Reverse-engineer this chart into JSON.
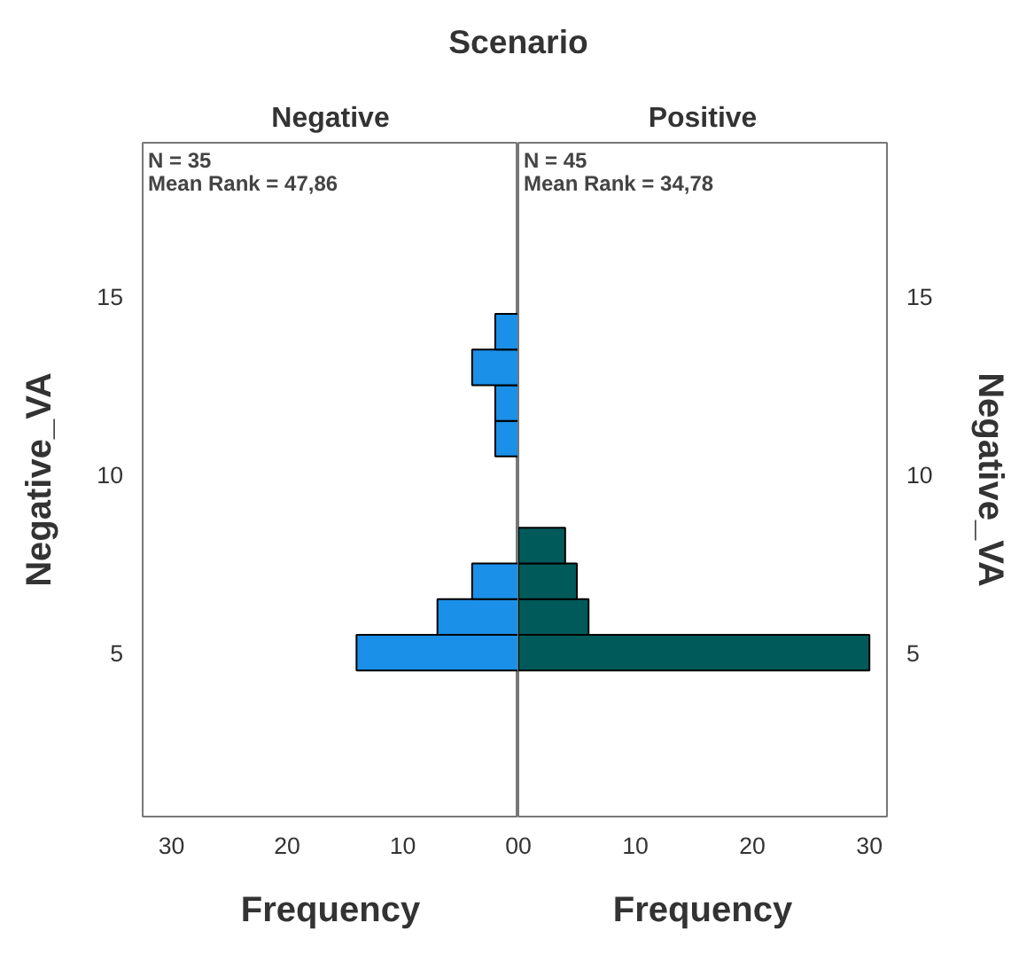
{
  "chart_data": [
    {
      "type": "histogram",
      "orientation": "horizontal",
      "title": "Negative",
      "xlabel": "Frequency",
      "ylabel": "Negative_VA",
      "annotations": [
        "Scenario",
        "N = 35",
        "Mean Rank = 47,86"
      ],
      "bins": [
        4.5,
        5.5,
        6.5,
        7.5,
        8.5,
        9.5,
        10.5,
        11.5,
        12.5,
        13.5,
        14.5
      ],
      "values": [
        14,
        7,
        4,
        0,
        0,
        0,
        2,
        2,
        4,
        2
      ],
      "color": "#1a90e8",
      "xlim": [
        32.5,
        0
      ],
      "xticks": [
        30,
        20,
        10,
        0
      ],
      "ylim": [
        0.4,
        19.3
      ],
      "yticks": [
        5,
        10,
        15
      ],
      "grid": false
    },
    {
      "type": "histogram",
      "orientation": "horizontal",
      "title": "Positive",
      "xlabel": "Frequency",
      "ylabel": "Negative_VA",
      "annotations": [
        "N = 45",
        "Mean Rank = 34,78"
      ],
      "bins": [
        4.5,
        5.5,
        6.5,
        7.5,
        8.5
      ],
      "values": [
        30,
        6,
        5,
        4
      ],
      "color": "#005a5a",
      "xlim": [
        0,
        31.5
      ],
      "xticks": [
        0,
        10,
        20,
        30
      ],
      "ylim": [
        0.4,
        19.3
      ],
      "yticks": [
        5,
        10,
        15
      ],
      "grid": false
    }
  ]
}
